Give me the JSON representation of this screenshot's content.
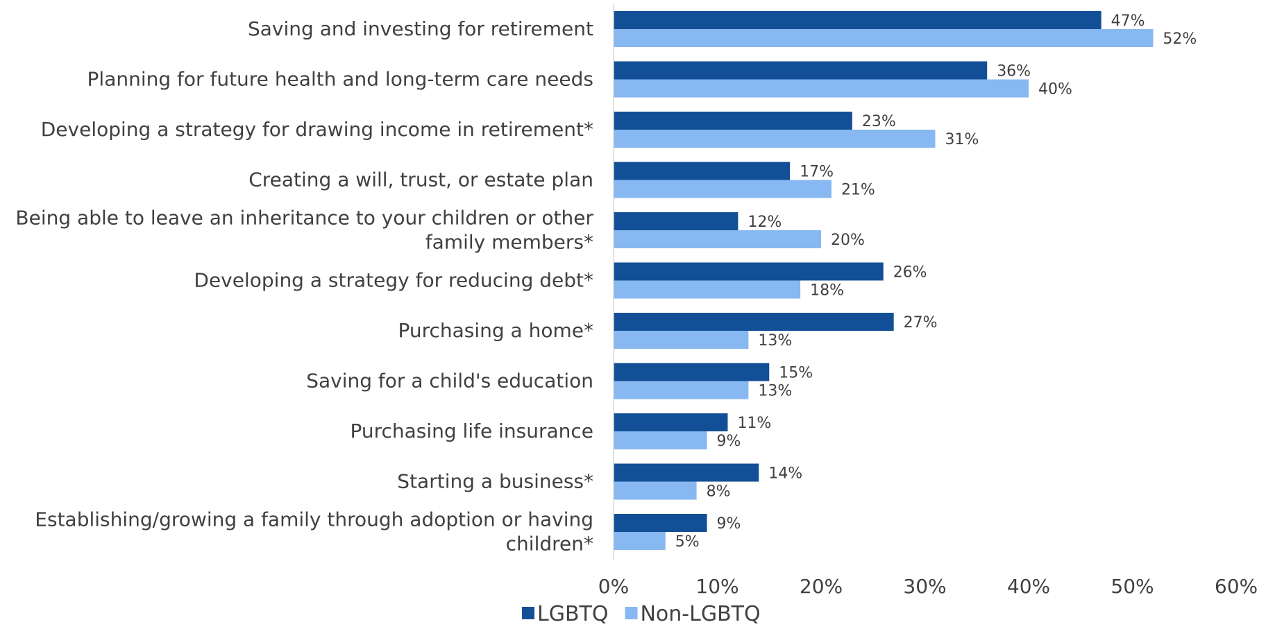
{
  "chart_data": {
    "type": "bar",
    "orientation": "horizontal",
    "categories": [
      [
        "Saving and investing for retirement"
      ],
      [
        "Planning for future health and long-term care needs"
      ],
      [
        "Developing a strategy for drawing income in retirement*"
      ],
      [
        "Creating a will, trust, or estate plan"
      ],
      [
        "Being able to leave an inheritance to your children or other",
        "family members*"
      ],
      [
        "Developing a strategy for reducing debt*"
      ],
      [
        "Purchasing a home*"
      ],
      [
        "Saving for a child's education"
      ],
      [
        "Purchasing life insurance"
      ],
      [
        "Starting a business*"
      ],
      [
        "Establishing/growing a family through adoption or having",
        "children*"
      ]
    ],
    "series": [
      {
        "name": "LGBTQ",
        "color": "#134f96",
        "values": [
          47,
          36,
          23,
          17,
          12,
          26,
          27,
          15,
          11,
          14,
          9
        ]
      },
      {
        "name": "Non-LGBTQ",
        "color": "#87b8f1",
        "values": [
          52,
          40,
          31,
          21,
          20,
          18,
          13,
          13,
          9,
          8,
          5
        ]
      }
    ],
    "xlim": [
      0,
      60
    ],
    "x_ticks": [
      0,
      10,
      20,
      30,
      40,
      50,
      60
    ],
    "tick_suffix": "%",
    "value_suffix": "%",
    "grid": false,
    "legend_position": "bottom"
  }
}
